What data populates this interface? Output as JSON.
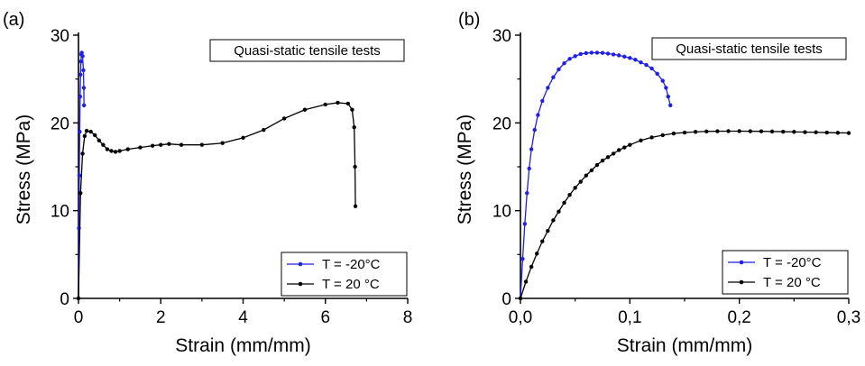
{
  "chart_data": [
    {
      "type": "scatter",
      "panel_label": "(a)",
      "title": "Quasi-static tensile tests",
      "xlabel": "Strain (mm/mm)",
      "ylabel": "Stress (MPa)",
      "xlim": [
        0,
        8
      ],
      "ylim": [
        0,
        30
      ],
      "xticks": [
        "0",
        "2",
        "4",
        "6",
        "8"
      ],
      "yticks": [
        "0",
        "10",
        "20",
        "30"
      ],
      "legend_position": "bottom-right",
      "series": [
        {
          "name": "T = -20°C",
          "color": "#1f1fe6",
          "x": [
            0,
            0.01,
            0.02,
            0.03,
            0.04,
            0.05,
            0.06,
            0.07,
            0.08,
            0.1,
            0.12,
            0.13,
            0.135
          ],
          "y": [
            0,
            8,
            14,
            19,
            23,
            25.5,
            27,
            27.8,
            28,
            27.6,
            26,
            24,
            22
          ]
        },
        {
          "name": "T = 20 °C",
          "color": "#000000",
          "x": [
            0,
            0.05,
            0.1,
            0.15,
            0.2,
            0.3,
            0.4,
            0.5,
            0.6,
            0.7,
            0.8,
            0.9,
            1.0,
            1.2,
            1.5,
            1.8,
            2.0,
            2.2,
            2.5,
            3.0,
            3.5,
            4.0,
            4.5,
            5.0,
            5.5,
            6.0,
            6.3,
            6.55,
            6.65,
            6.7,
            6.72,
            6.73
          ],
          "y": [
            0,
            12,
            16.5,
            18.5,
            19.1,
            19.0,
            18.6,
            18.0,
            17.5,
            17.0,
            16.8,
            16.7,
            16.8,
            17.0,
            17.2,
            17.4,
            17.5,
            17.6,
            17.5,
            17.5,
            17.7,
            18.3,
            19.2,
            20.5,
            21.5,
            22.1,
            22.3,
            22.2,
            21.5,
            19.5,
            15,
            10.5
          ]
        }
      ]
    },
    {
      "type": "scatter",
      "panel_label": "(b)",
      "title": "Quasi-static tensile tests",
      "xlabel": "Strain (mm/mm)",
      "ylabel": "Stress (MPa)",
      "xlim": [
        0,
        0.3
      ],
      "ylim": [
        0,
        30
      ],
      "xticks": [
        "0,0",
        "0,1",
        "0,2",
        "0,3"
      ],
      "yticks": [
        "0",
        "10",
        "20",
        "30"
      ],
      "legend_position": "bottom-right",
      "series": [
        {
          "name": "T = -20°C",
          "color": "#1f1fe6",
          "x": [
            0,
            0.002,
            0.004,
            0.006,
            0.008,
            0.01,
            0.013,
            0.016,
            0.02,
            0.025,
            0.03,
            0.035,
            0.04,
            0.045,
            0.05,
            0.055,
            0.06,
            0.065,
            0.07,
            0.075,
            0.08,
            0.085,
            0.09,
            0.095,
            0.1,
            0.105,
            0.11,
            0.115,
            0.12,
            0.125,
            0.13,
            0.133,
            0.135,
            0.137
          ],
          "y": [
            0,
            4.5,
            8.5,
            12,
            14.8,
            17,
            19.2,
            20.9,
            22.5,
            24.0,
            25.2,
            26.1,
            26.8,
            27.3,
            27.6,
            27.85,
            27.95,
            28.0,
            28.0,
            27.98,
            27.9,
            27.8,
            27.7,
            27.55,
            27.4,
            27.2,
            26.9,
            26.6,
            26.2,
            25.6,
            24.8,
            24.0,
            23.0,
            22.0
          ]
        },
        {
          "name": "T = 20 °C",
          "color": "#000000",
          "x": [
            0,
            0.005,
            0.01,
            0.015,
            0.02,
            0.025,
            0.03,
            0.035,
            0.04,
            0.045,
            0.05,
            0.055,
            0.06,
            0.065,
            0.07,
            0.075,
            0.08,
            0.085,
            0.09,
            0.095,
            0.1,
            0.11,
            0.12,
            0.13,
            0.14,
            0.15,
            0.16,
            0.17,
            0.18,
            0.19,
            0.2,
            0.21,
            0.22,
            0.23,
            0.24,
            0.25,
            0.26,
            0.27,
            0.28,
            0.29,
            0.3
          ],
          "y": [
            0,
            1.9,
            3.6,
            5.1,
            6.5,
            7.7,
            8.9,
            9.9,
            10.9,
            11.8,
            12.6,
            13.3,
            14.0,
            14.6,
            15.2,
            15.7,
            16.1,
            16.5,
            16.9,
            17.2,
            17.5,
            18.0,
            18.35,
            18.6,
            18.8,
            18.9,
            18.98,
            19.03,
            19.05,
            19.06,
            19.06,
            19.05,
            19.04,
            19.02,
            19.0,
            18.98,
            18.95,
            18.93,
            18.9,
            18.87,
            18.85
          ]
        }
      ]
    }
  ]
}
